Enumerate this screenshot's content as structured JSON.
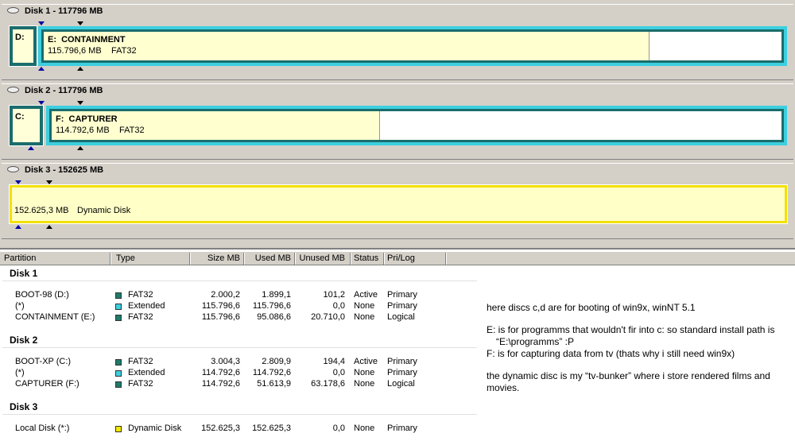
{
  "disks": [
    {
      "title": "Disk 1 - 117796 MB",
      "primary": {
        "label": "D:"
      },
      "logical": {
        "label": "E:  CONTAINMENT",
        "size": "115.796,6 MB",
        "fs": "FAT32"
      }
    },
    {
      "title": "Disk 2 - 117796 MB",
      "primary": {
        "label": "C:"
      },
      "logical": {
        "label": "F:  CAPTURER",
        "size": "114.792,6 MB",
        "fs": "FAT32"
      }
    },
    {
      "title": "Disk 3 - 152625 MB",
      "dynamic": {
        "size": "152.625,3 MB",
        "type": "Dynamic Disk"
      }
    }
  ],
  "table": {
    "columns": [
      "Partition",
      "Type",
      "Size MB",
      "Used MB",
      "Unused MB",
      "Status",
      "Pri/Log"
    ],
    "groups": [
      {
        "name": "Disk 1",
        "rows": [
          [
            "BOOT-98 (D:)",
            "FAT32",
            "2.000,2",
            "1.899,1",
            "101,2",
            "Active",
            "Primary"
          ],
          [
            "(*)",
            "Extended",
            "115.796,6",
            "115.796,6",
            "0,0",
            "None",
            "Primary"
          ],
          [
            "CONTAINMENT (E:)",
            "FAT32",
            "115.796,6",
            "95.086,6",
            "20.710,0",
            "None",
            "Logical"
          ]
        ]
      },
      {
        "name": "Disk 2",
        "rows": [
          [
            "BOOT-XP (C:)",
            "FAT32",
            "3.004,3",
            "2.809,9",
            "194,4",
            "Active",
            "Primary"
          ],
          [
            "(*)",
            "Extended",
            "114.792,6",
            "114.792,6",
            "0,0",
            "None",
            "Primary"
          ],
          [
            "CAPTURER (F:)",
            "FAT32",
            "114.792,6",
            "51.613,9",
            "63.178,6",
            "None",
            "Logical"
          ]
        ]
      },
      {
        "name": "Disk 3",
        "rows": [
          [
            "Local Disk (*:)",
            "Dynamic Disk",
            "152.625,3",
            "152.625,3",
            "0,0",
            "None",
            "Primary"
          ]
        ]
      }
    ]
  },
  "notes": [
    [
      "here discs c,d are for booting of win9x, winNT 5.1"
    ],
    [
      "E: is for programms that wouldn't fir into c: so standard install path is",
      "“E:\\programms” :P",
      "F: is for capturing data from tv (thats why i still need win9x)"
    ],
    [
      "the dynamic disc is my “tv-bunker” where i store rendered films and",
      "movies."
    ]
  ]
}
